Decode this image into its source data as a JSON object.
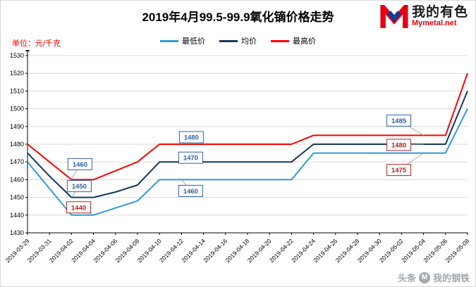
{
  "header": {
    "title": "2019年4月99.5-99.9氧化镝价格走势",
    "unit_label": "单位：元/千克",
    "logo": {
      "name": "我的有色",
      "site": "Mymetal.net"
    }
  },
  "legend": [
    {
      "label": "最低价",
      "color": "#2e9bd5"
    },
    {
      "label": "均价",
      "color": "#17375e"
    },
    {
      "label": "最高价",
      "color": "#ff0000"
    }
  ],
  "watermark": {
    "part1": "头条",
    "icon": "mysteel-circle-logo",
    "part2": "我的钢铁"
  },
  "chart_data": {
    "type": "line",
    "title": "2019年4月99.5-99.9氧化镝价格走势",
    "ylabel": "元/千克",
    "ylim": [
      1430,
      1530
    ],
    "ytick_step": 10,
    "grid": true,
    "legend_position": "top",
    "x": [
      "2019-03-29",
      "2019-03-31",
      "2019-04-02",
      "2019-04-04",
      "2019-04-06",
      "2019-04-08",
      "2019-04-10",
      "2019-04-12",
      "2019-04-14",
      "2019-04-16",
      "2019-04-18",
      "2019-04-20",
      "2019-04-22",
      "2019-04-24",
      "2019-04-26",
      "2019-04-28",
      "2019-04-30",
      "2019-05-02",
      "2019-05-04",
      "2019-05-06",
      "2019-05-08"
    ],
    "series": [
      {
        "name": "最低价",
        "color": "#2e9bd5",
        "values": [
          1470,
          1455,
          1440,
          1440,
          1444,
          1448,
          1460,
          1460,
          1460,
          1460,
          1460,
          1460,
          1460,
          1475,
          1475,
          1475,
          1475,
          1475,
          1475,
          1475,
          1500
        ]
      },
      {
        "name": "均价",
        "color": "#17375e",
        "values": [
          1475,
          1462,
          1450,
          1450,
          1453,
          1457,
          1470,
          1470,
          1470,
          1470,
          1470,
          1470,
          1470,
          1480,
          1480,
          1480,
          1480,
          1480,
          1480,
          1480,
          1510
        ]
      },
      {
        "name": "最高价",
        "color": "#ff0000",
        "values": [
          1480,
          1470,
          1460,
          1460,
          1465,
          1470,
          1480,
          1480,
          1480,
          1480,
          1480,
          1480,
          1480,
          1485,
          1485,
          1485,
          1485,
          1485,
          1485,
          1485,
          1520
        ]
      }
    ],
    "annotations": [
      {
        "text": "1460",
        "x": "2019-04-02",
        "value": 1460,
        "ox": 12,
        "oy": -22,
        "color": "#2f5fa5"
      },
      {
        "text": "1450",
        "x": "2019-04-02",
        "value": 1450,
        "ox": 11,
        "oy": -16,
        "color": "#2f5fa5"
      },
      {
        "text": "1440",
        "x": "2019-04-04",
        "value": 1440,
        "ox": -21,
        "oy": -11,
        "color": "#b22222"
      },
      {
        "text": "1480",
        "x": "2019-04-12",
        "value": 1480,
        "ox": 14,
        "oy": -10,
        "color": "#2f5fa5"
      },
      {
        "text": "1470",
        "x": "2019-04-12",
        "value": 1470,
        "ox": 13,
        "oy": -6,
        "color": "#2f5fa5"
      },
      {
        "text": "1460",
        "x": "2019-04-12",
        "value": 1460,
        "ox": 13,
        "oy": 16,
        "color": "#2f5fa5"
      },
      {
        "text": "1485",
        "x": "2019-05-04",
        "value": 1485,
        "ox": -35,
        "oy": -21,
        "color": "#2f5fa5"
      },
      {
        "text": "1480",
        "x": "2019-05-04",
        "value": 1480,
        "ox": -35,
        "oy": 1,
        "color": "#b22222"
      },
      {
        "text": "1475",
        "x": "2019-05-04",
        "value": 1475,
        "ox": -35,
        "oy": 24,
        "color": "#b22222"
      }
    ]
  }
}
